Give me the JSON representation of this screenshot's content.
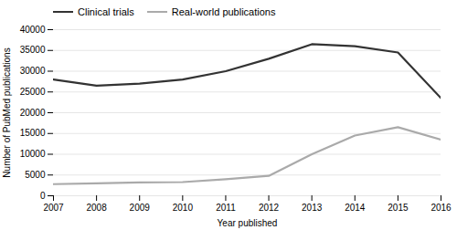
{
  "chart_data": {
    "type": "line",
    "xlabel": "Year published",
    "ylabel": "Number of PubMed publications",
    "x": [
      2007,
      2008,
      2009,
      2010,
      2011,
      2012,
      2013,
      2014,
      2015,
      2016
    ],
    "series": [
      {
        "name": "Clinical trials",
        "color": "#333333",
        "values": [
          28000,
          26500,
          27000,
          28000,
          30000,
          33000,
          36500,
          36000,
          34500,
          23500
        ]
      },
      {
        "name": "Real-world publications",
        "color": "#aaaaaa",
        "values": [
          2800,
          3000,
          3200,
          3300,
          4000,
          4800,
          10000,
          14500,
          16500,
          13500
        ]
      }
    ],
    "xlim": [
      2007,
      2016
    ],
    "xticks": [
      2007,
      2008,
      2009,
      2010,
      2011,
      2012,
      2013,
      2014,
      2015,
      2016
    ],
    "ylim": [
      0,
      40000
    ],
    "yticks": [
      0,
      5000,
      10000,
      15000,
      20000,
      25000,
      30000,
      35000,
      40000
    ],
    "grid": "y",
    "legend": "upper left"
  }
}
